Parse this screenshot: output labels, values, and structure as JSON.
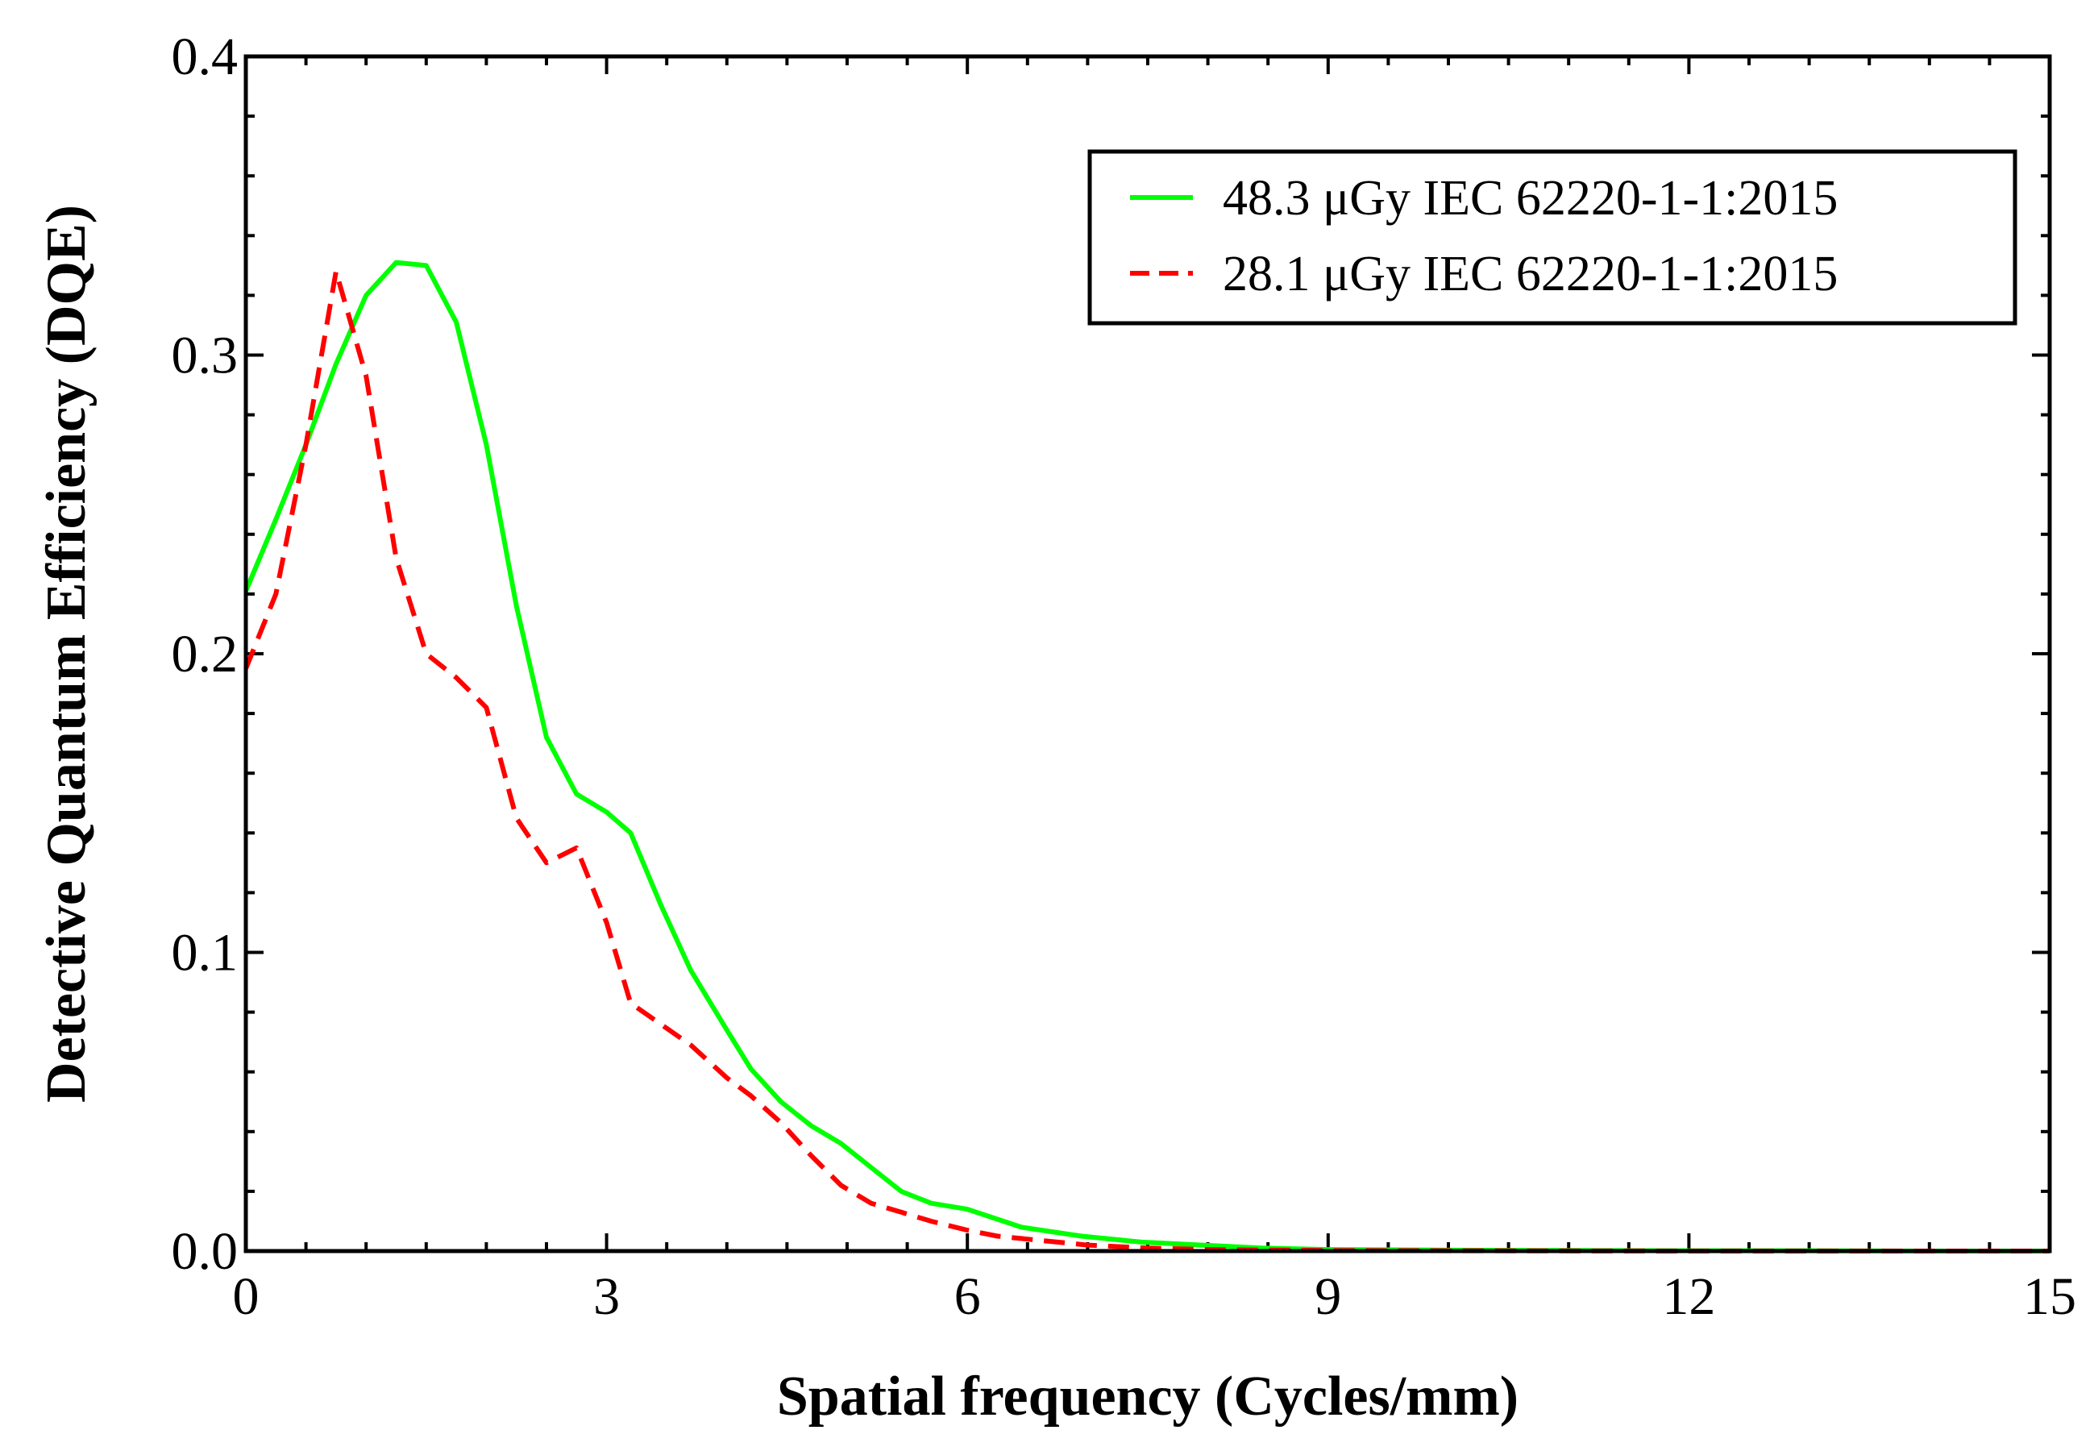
{
  "chart_data": {
    "type": "line",
    "title": "",
    "xlabel": "Spatial frequency (Cycles/mm)",
    "ylabel": "Detective Quantum Efficiency (DQE)",
    "xlim": [
      0,
      15
    ],
    "ylim": [
      0,
      0.4
    ],
    "x_ticks": [
      0,
      3,
      6,
      9,
      12,
      15
    ],
    "x_tick_labels": [
      "0",
      "3",
      "6",
      "9",
      "12",
      "15"
    ],
    "y_ticks": [
      0,
      0.1,
      0.2,
      0.3,
      0.4
    ],
    "y_tick_labels": [
      "0.0",
      "0.1",
      "0.2",
      "0.3",
      "0.4"
    ],
    "grid": false,
    "legend_position": "top-right",
    "series": [
      {
        "name": "48.3 μGy IEC 62220-1-1:2015",
        "color": "#00ff00",
        "dash": "solid",
        "x": [
          0,
          0.25,
          0.5,
          0.75,
          1.0,
          1.25,
          1.5,
          1.75,
          2.0,
          2.25,
          2.5,
          2.75,
          3.0,
          3.2,
          3.45,
          3.7,
          4.0,
          4.2,
          4.45,
          4.7,
          4.95,
          5.2,
          5.45,
          5.7,
          6.0,
          6.45,
          6.95,
          7.45,
          7.95,
          8.45,
          9.0,
          10.0,
          11.0,
          12.0,
          13.0,
          14.0,
          15.0
        ],
        "y": [
          0.221,
          0.245,
          0.27,
          0.297,
          0.32,
          0.331,
          0.33,
          0.311,
          0.27,
          0.216,
          0.172,
          0.153,
          0.147,
          0.14,
          0.116,
          0.094,
          0.074,
          0.061,
          0.05,
          0.042,
          0.036,
          0.028,
          0.02,
          0.016,
          0.014,
          0.008,
          0.005,
          0.003,
          0.002,
          0.001,
          0.0005,
          0.0003,
          0.0002,
          0.0001,
          0.0001,
          0.0,
          0.0
        ]
      },
      {
        "name": "28.1 μGy IEC 62220-1-1:2015",
        "color": "#ff0000",
        "dash": "dashed",
        "x": [
          0,
          0.25,
          0.5,
          0.75,
          1.0,
          1.25,
          1.5,
          1.75,
          2.0,
          2.25,
          2.5,
          2.75,
          3.0,
          3.2,
          3.45,
          3.7,
          4.0,
          4.2,
          4.45,
          4.7,
          4.95,
          5.2,
          5.45,
          5.7,
          6.0,
          6.25,
          6.5,
          7.0,
          7.5,
          8.0,
          9.0,
          10.0,
          12.0,
          15.0
        ],
        "y": [
          0.195,
          0.22,
          0.27,
          0.328,
          0.293,
          0.232,
          0.2,
          0.192,
          0.182,
          0.145,
          0.13,
          0.135,
          0.11,
          0.083,
          0.076,
          0.069,
          0.058,
          0.052,
          0.043,
          0.032,
          0.022,
          0.016,
          0.013,
          0.01,
          0.007,
          0.005,
          0.004,
          0.002,
          0.001,
          0.0005,
          0.0002,
          0.0001,
          0.0,
          0.0
        ]
      }
    ]
  }
}
